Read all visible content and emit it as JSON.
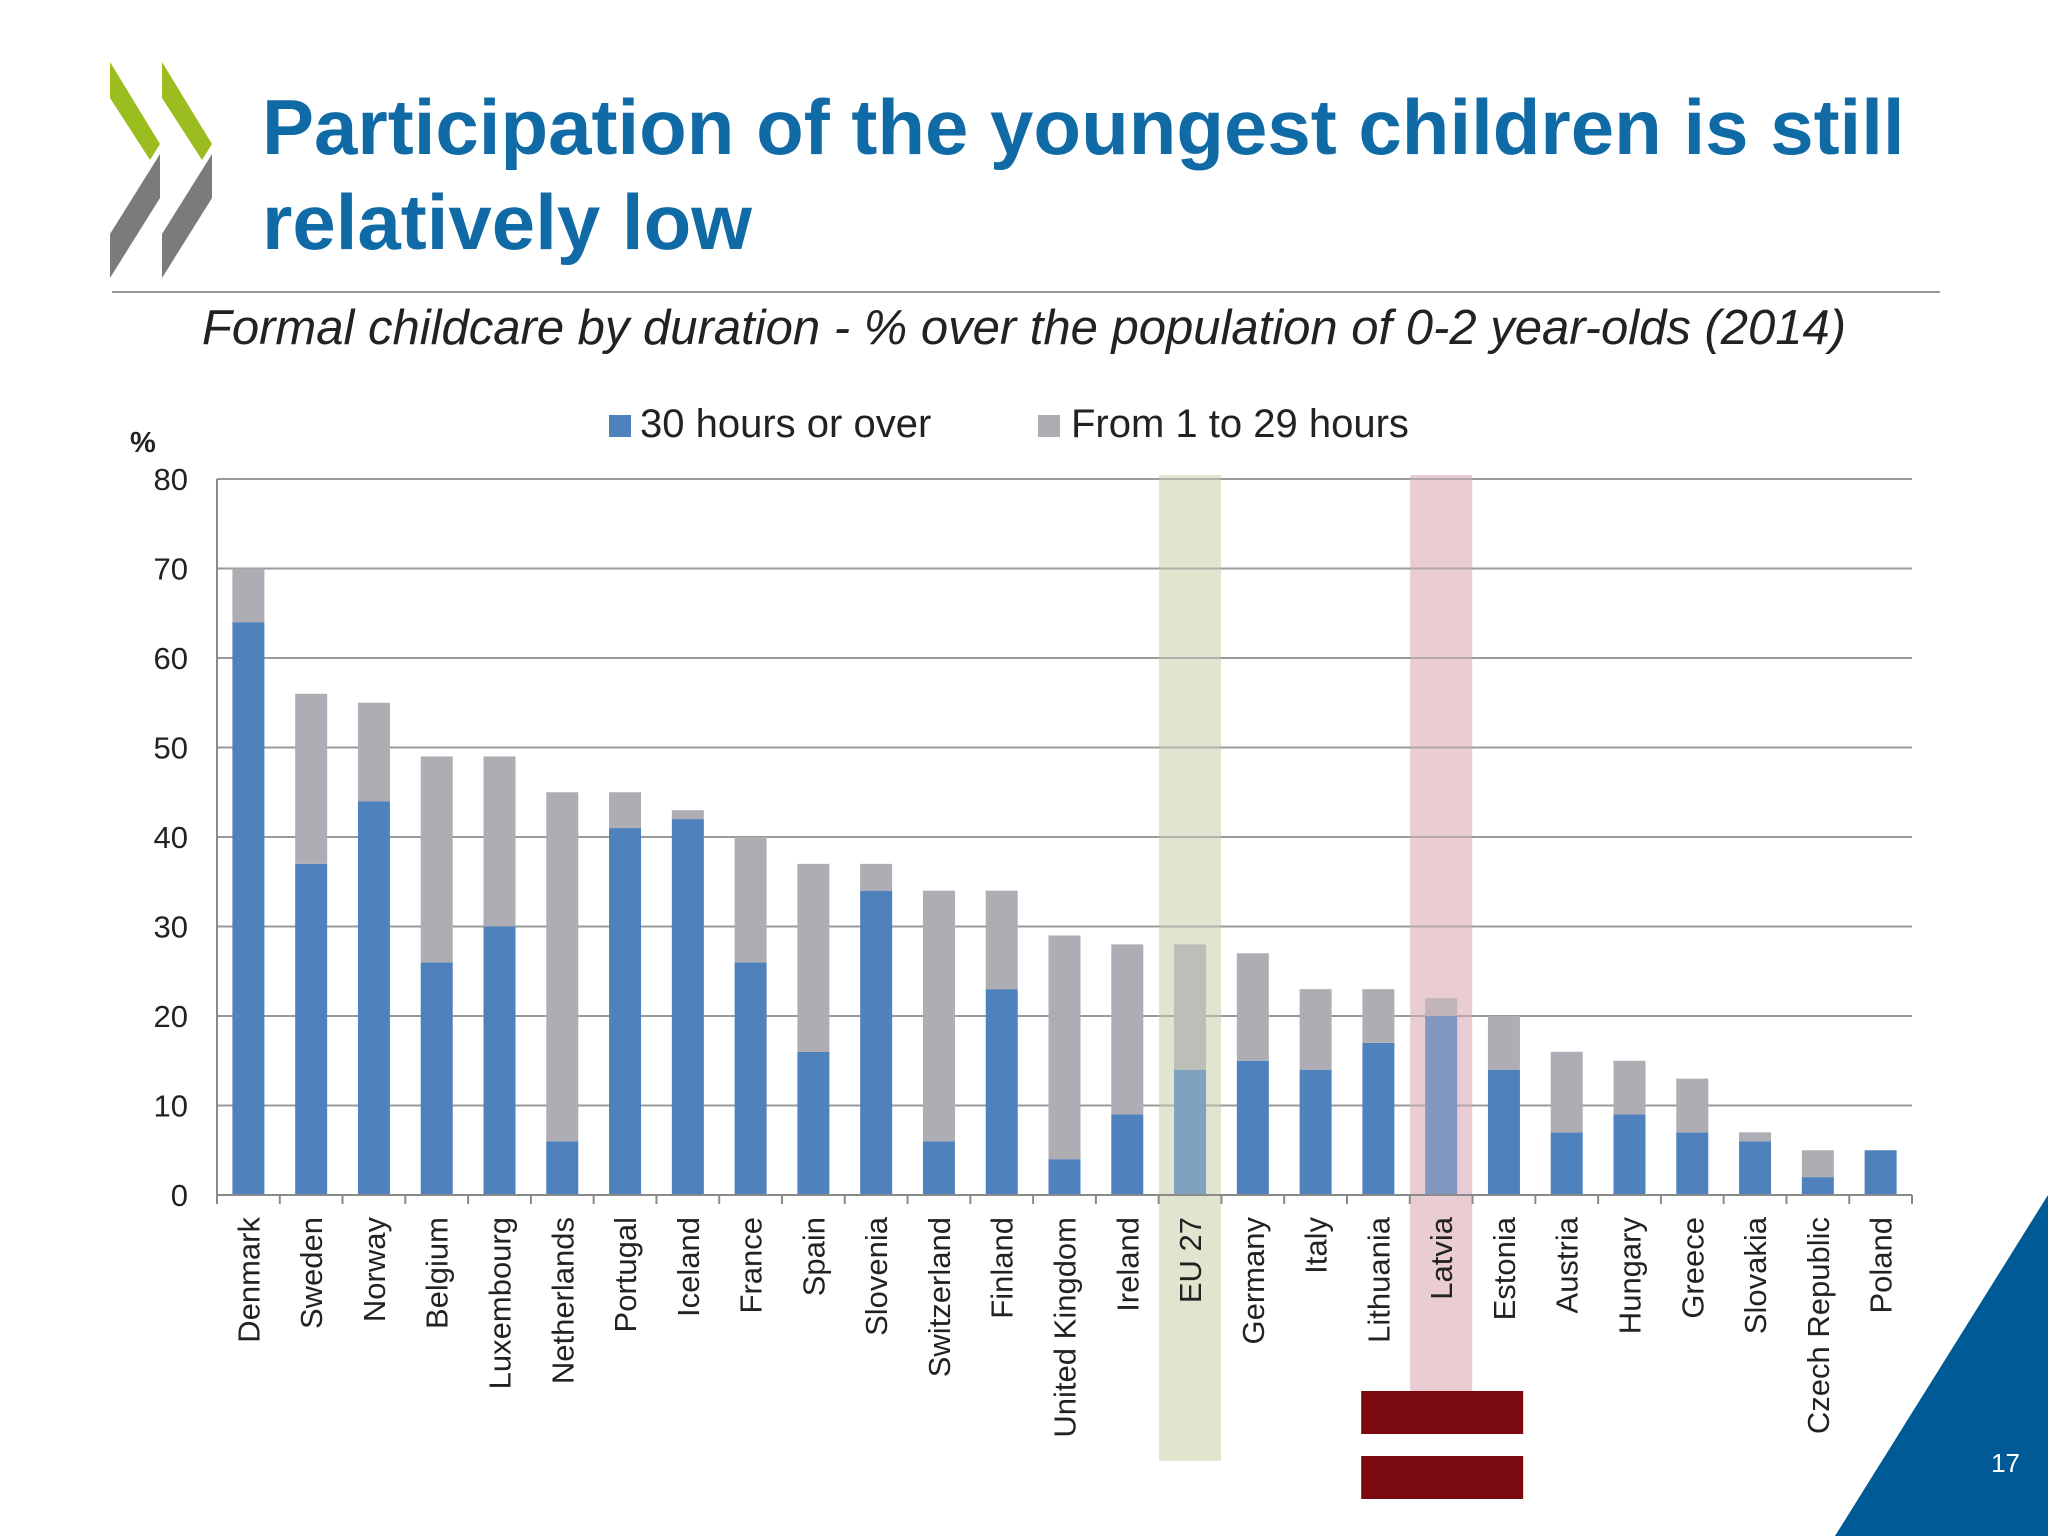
{
  "slide": {
    "title": "Participation of the youngest children is still relatively low",
    "subtitle": "Formal childcare by duration - % over the population of 0-2 year-olds (2014)",
    "page_number": "17"
  },
  "colors": {
    "title": "#0f6aa5",
    "series_30_plus": "#4f81bd",
    "series_1_29": "#aeadb3",
    "eu_highlight": "#d7dfc4",
    "latvia_highlight": "#e6c4c9",
    "latvia_flag_red": "#7a0a0f",
    "logo_green": "#9bbd1f",
    "logo_grey": "#7b7b7b",
    "corner_blue": "#005a96"
  },
  "chart_data": {
    "type": "bar",
    "stacked": true,
    "ylabel": "%",
    "ylim": [
      0,
      80
    ],
    "yticks": [
      0,
      10,
      20,
      30,
      40,
      50,
      60,
      70,
      80
    ],
    "grid": true,
    "legend_position": "top-center",
    "categories": [
      "Denmark",
      "Sweden",
      "Norway",
      "Belgium",
      "Luxembourg",
      "Netherlands",
      "Portugal",
      "Iceland",
      "France",
      "Spain",
      "Slovenia",
      "Switzerland",
      "Finland",
      "United Kingdom",
      "Ireland",
      "EU 27",
      "Germany",
      "Italy",
      "Lithuania",
      "Latvia",
      "Estonia",
      "Austria",
      "Hungary",
      "Greece",
      "Slovakia",
      "Czech Republic",
      "Poland"
    ],
    "series": [
      {
        "name": "30 hours or over",
        "color": "#4f81bd",
        "values": [
          64,
          37,
          44,
          26,
          30,
          6,
          41,
          42,
          26,
          16,
          34,
          6,
          23,
          4,
          9,
          14,
          15,
          14,
          17,
          20,
          14,
          7,
          9,
          7,
          6,
          2,
          5
        ]
      },
      {
        "name": "From 1 to 29 hours",
        "color": "#aeadb3",
        "values": [
          6,
          19,
          11,
          23,
          19,
          39,
          4,
          1,
          14,
          21,
          3,
          28,
          11,
          25,
          19,
          14,
          12,
          9,
          6,
          2,
          6,
          9,
          6,
          6,
          1,
          3,
          0
        ]
      }
    ],
    "highlighted_categories": [
      "EU 27",
      "Latvia"
    ]
  }
}
